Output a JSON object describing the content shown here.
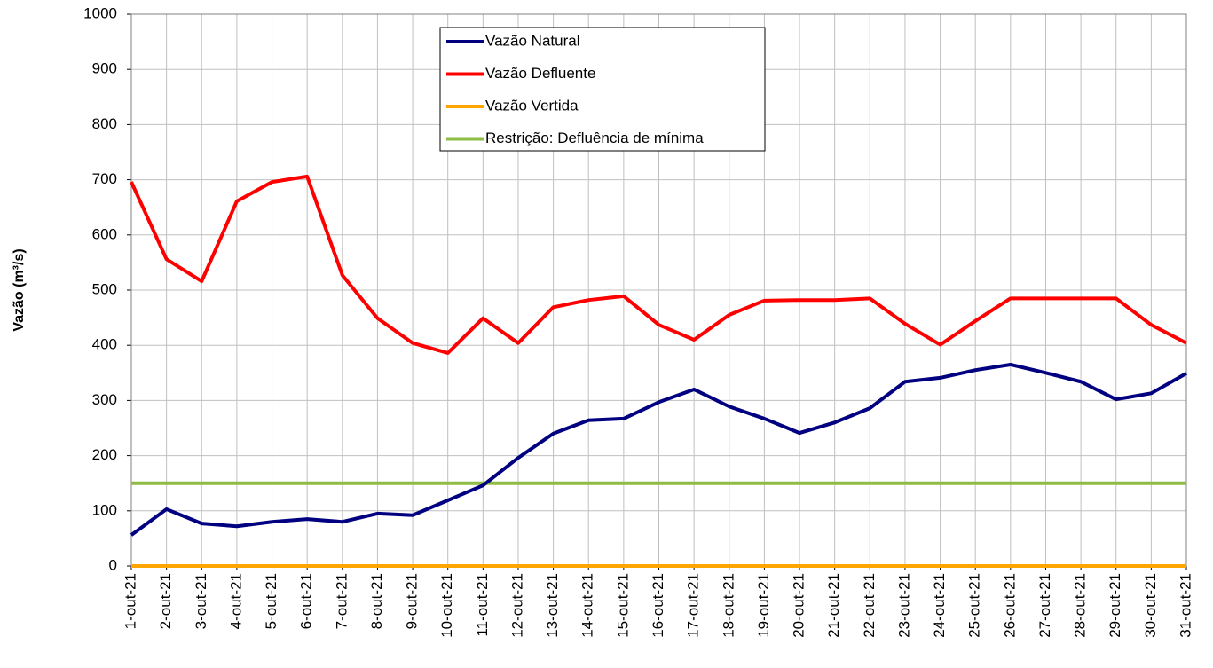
{
  "chart_data": {
    "type": "line",
    "ylabel": "Vazão (m³/s)",
    "categories": [
      "1-out-21",
      "2-out-21",
      "3-out-21",
      "4-out-21",
      "5-out-21",
      "6-out-21",
      "7-out-21",
      "8-out-21",
      "9-out-21",
      "10-out-21",
      "11-out-21",
      "12-out-21",
      "13-out-21",
      "14-out-21",
      "15-out-21",
      "16-out-21",
      "17-out-21",
      "18-out-21",
      "19-out-21",
      "20-out-21",
      "21-out-21",
      "22-out-21",
      "23-out-21",
      "24-out-21",
      "25-out-21",
      "26-out-21",
      "27-out-21",
      "28-out-21",
      "29-out-21",
      "30-out-21",
      "31-out-21"
    ],
    "series": [
      {
        "name": "Vazão Natural",
        "color": "#000080",
        "values": [
          56,
          103,
          77,
          72,
          80,
          85,
          80,
          95,
          92,
          119,
          146,
          196,
          240,
          264,
          267,
          297,
          320,
          289,
          267,
          241,
          260,
          286,
          334,
          341,
          355,
          365,
          350,
          334,
          302,
          313,
          349
        ]
      },
      {
        "name": "Vazão Defluente",
        "color": "#ff0000",
        "values": [
          696,
          556,
          516,
          661,
          696,
          706,
          527,
          449,
          404,
          386,
          449,
          404,
          469,
          482,
          489,
          437,
          410,
          455,
          481,
          482,
          482,
          485,
          439,
          401,
          444,
          485,
          485,
          485,
          485,
          437,
          404
        ]
      },
      {
        "name": "Vazão Vertida",
        "color": "#ffa500",
        "values": [
          0,
          0,
          0,
          0,
          0,
          0,
          0,
          0,
          0,
          0,
          0,
          0,
          0,
          0,
          0,
          0,
          0,
          0,
          0,
          0,
          0,
          0,
          0,
          0,
          0,
          0,
          0,
          0,
          0,
          0,
          0
        ]
      },
      {
        "name": "Restrição: Defluência de mínima",
        "color": "#8fbc45",
        "values": [
          150,
          150,
          150,
          150,
          150,
          150,
          150,
          150,
          150,
          150,
          150,
          150,
          150,
          150,
          150,
          150,
          150,
          150,
          150,
          150,
          150,
          150,
          150,
          150,
          150,
          150,
          150,
          150,
          150,
          150,
          150
        ]
      }
    ],
    "ylim": [
      0,
      1000
    ],
    "yticks": [
      0,
      100,
      200,
      300,
      400,
      500,
      600,
      700,
      800,
      900,
      1000
    ],
    "grid": true
  }
}
